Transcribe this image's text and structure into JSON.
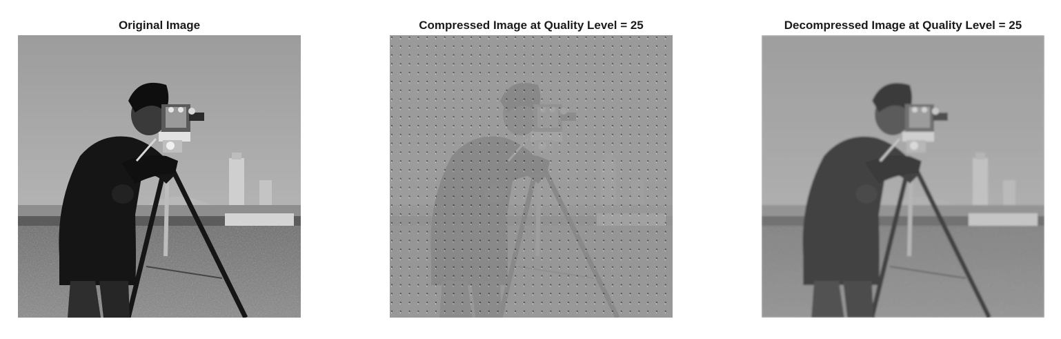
{
  "figure": {
    "panels": [
      {
        "title": "Original Image"
      },
      {
        "title": "Compressed Image at Quality Level = 25"
      },
      {
        "title": "Decompressed Image at Quality Level = 25"
      }
    ]
  }
}
